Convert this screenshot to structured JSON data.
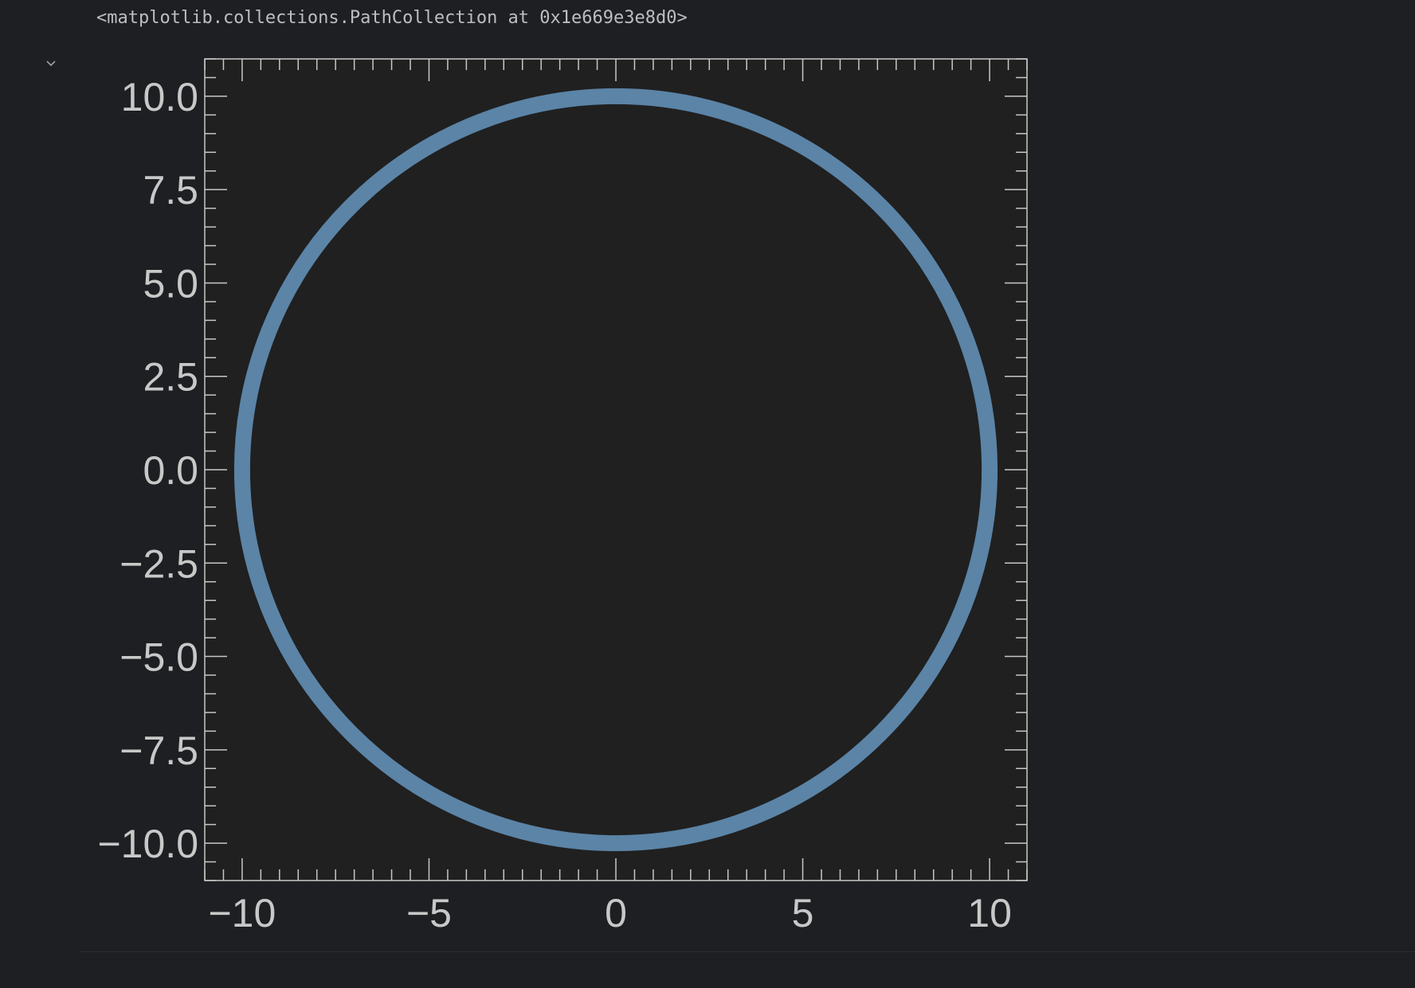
{
  "output": {
    "repr_text": "<matplotlib.collections.PathCollection at 0x1e669e3e8d0>",
    "toggle_icon": "chevron-down-icon"
  },
  "colors": {
    "background": "#1e1f22",
    "plot_background": "#202020",
    "axis": "#c8c8c8",
    "series": "#5b84a7"
  },
  "chart_data": {
    "type": "scatter",
    "title": "",
    "xlabel": "",
    "ylabel": "",
    "xlim": [
      -11,
      11
    ],
    "ylim": [
      -11,
      11
    ],
    "xticks": [
      -10,
      -5,
      0,
      5,
      10
    ],
    "xtick_labels": [
      "−10",
      "−5",
      "0",
      "5",
      "10"
    ],
    "yticks": [
      10,
      7.5,
      5,
      2.5,
      0,
      -2.5,
      -5,
      -7.5,
      -10
    ],
    "ytick_labels": [
      "10.0",
      "7.5",
      "5.0",
      "2.5",
      "0.0",
      "−2.5",
      "−5.0",
      "−7.5",
      "−10.0"
    ],
    "minor_step": 0.5,
    "grid": false,
    "ticks_on_all_sides": true,
    "series": [
      {
        "shape": "circle",
        "center": [
          0,
          0
        ],
        "radius": 10,
        "color": "#5b84a7"
      }
    ]
  }
}
